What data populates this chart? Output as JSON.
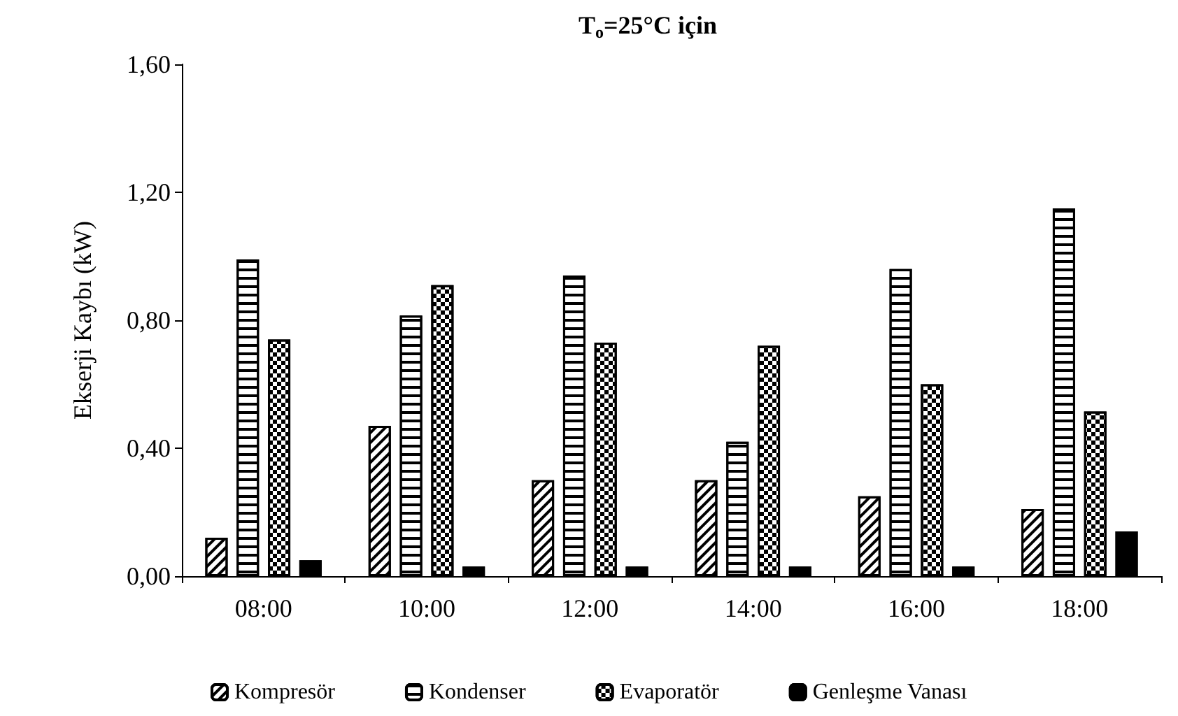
{
  "chart_data": {
    "type": "bar",
    "title": "T$_{o}$=25°C için",
    "ylabel": "Ekserji Kaybı (kW)",
    "categories": [
      "08:00",
      "10:00",
      "12:00",
      "14:00",
      "16:00",
      "18:00"
    ],
    "series": [
      {
        "name": "Kompresör",
        "color": "#ffffff",
        "values": [
          0.12,
          0.47,
          0.3,
          0.3,
          0.25,
          0.21
        ]
      },
      {
        "name": "Kondenser",
        "color": "#ffffff",
        "values": [
          0.99,
          0.815,
          0.94,
          0.42,
          0.96,
          1.15
        ]
      },
      {
        "name": "Evaporatör",
        "color": "#ffffff",
        "values": [
          0.74,
          0.91,
          0.73,
          0.72,
          0.6,
          0.515
        ]
      },
      {
        "name": "Genleşme Vanası",
        "color": "#000000",
        "values": [
          0.05,
          0.03,
          0.03,
          0.03,
          0.03,
          0.14
        ]
      }
    ],
    "ylim": [
      0,
      1.6
    ],
    "yticks": [
      {
        "value": 0,
        "label": "0,00"
      },
      {
        "value": 0.4,
        "label": "0,40"
      },
      {
        "value": 0.8,
        "label": "0,80"
      },
      {
        "value": 1.2,
        "label": "1,20"
      },
      {
        "value": 1.6,
        "label": "1,60"
      }
    ],
    "grid": false,
    "legend": "bottom"
  }
}
